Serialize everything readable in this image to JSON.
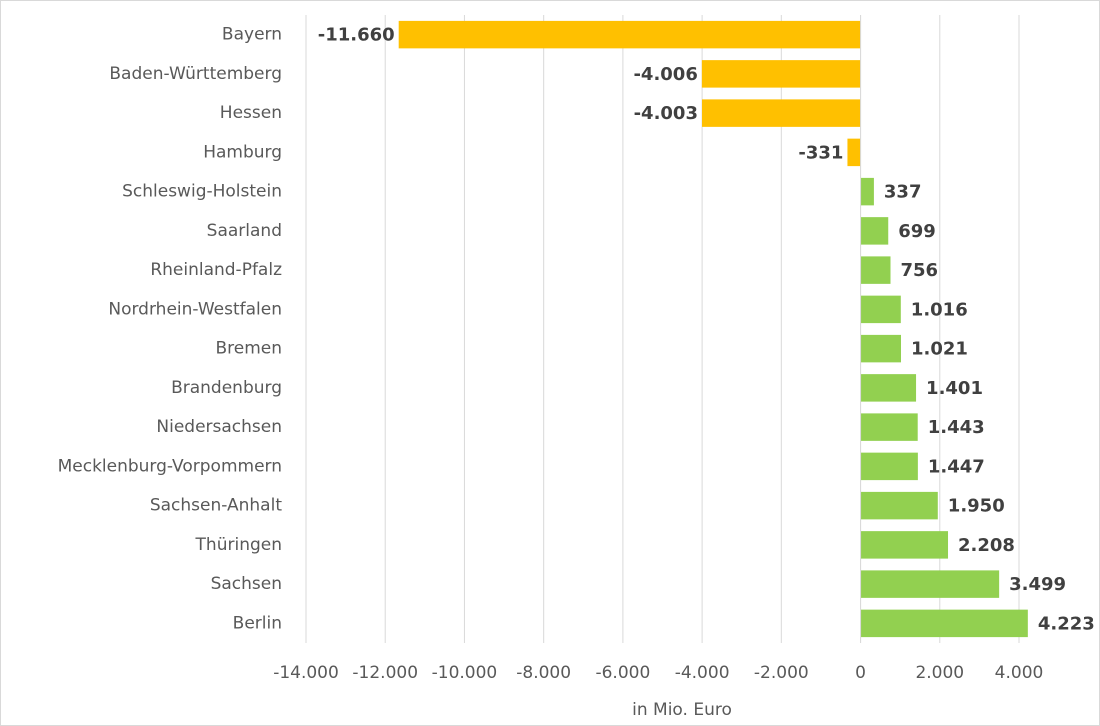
{
  "chart_data": {
    "type": "hbar",
    "categories": [
      "Bayern",
      "Baden-Württemberg",
      "Hessen",
      "Hamburg",
      "Schleswig-Holstein",
      "Saarland",
      "Rheinland-Pfalz",
      "Nordrhein-Westfalen",
      "Bremen",
      "Brandenburg",
      "Niedersachsen",
      "Mecklenburg-Vorpommern",
      "Sachsen-Anhalt",
      "Thüringen",
      "Sachsen",
      "Berlin"
    ],
    "values": [
      -11660,
      -4006,
      -4003,
      -331,
      337,
      699,
      756,
      1016,
      1021,
      1401,
      1443,
      1447,
      1950,
      2208,
      3499,
      4223
    ],
    "value_labels": [
      "-11.660",
      "-4.006",
      "-4.003",
      "-331",
      "337",
      "699",
      "756",
      "1.016",
      "1.021",
      "1.401",
      "1.443",
      "1.447",
      "1.950",
      "2.208",
      "3.499",
      "4.223"
    ],
    "color_negative": "#ffc000",
    "color_positive": "#92d050",
    "xlabel": "in Mio. Euro",
    "xlim": [
      -14000,
      4000
    ],
    "xticks": [
      {
        "value": -14000,
        "label": "-14.000"
      },
      {
        "value": -12000,
        "label": "-12.000"
      },
      {
        "value": -10000,
        "label": "-10.000"
      },
      {
        "value": -8000,
        "label": "-8.000"
      },
      {
        "value": -6000,
        "label": "-6.000"
      },
      {
        "value": -4000,
        "label": "-4.000"
      },
      {
        "value": -2000,
        "label": "-2.000"
      },
      0,
      {
        "value": 2000,
        "label": "2.000"
      },
      {
        "value": 4000,
        "label": "4.000"
      }
    ],
    "grid": true
  }
}
